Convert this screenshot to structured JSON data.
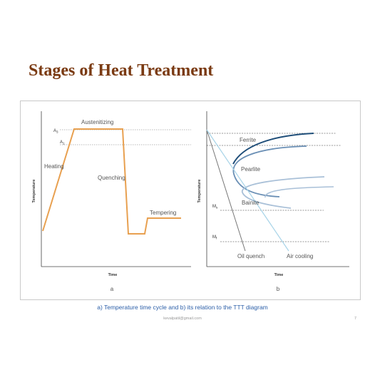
{
  "title": "Stages of Heat Treatment",
  "diagram_a": {
    "y_axis_label": "Temperature",
    "x_axis_label": "Time",
    "panel_label": "a",
    "labels": {
      "austenitizing": "Austenitizing",
      "heating": "Heating",
      "quenching": "Quenching",
      "tempering": "Tempering",
      "a3": "A",
      "a3_sub": "3",
      "a1": "A",
      "a1_sub": "1"
    }
  },
  "diagram_b": {
    "y_axis_label": "Temperature",
    "x_axis_label": "Time",
    "panel_label": "b",
    "labels": {
      "ferrite": "Ferrite",
      "pearlite": "Pearlite",
      "bainite": "Bainite",
      "ms": "M",
      "ms_sub": "s",
      "mf": "M",
      "mf_sub": "f",
      "oil_quench": "Oil quench",
      "air_cooling": "Air cooling"
    }
  },
  "caption": "a) Temperature time cycle and  b) its relation to the TTT diagram",
  "footer": {
    "email": "kevalpatil@gmail.com",
    "page": "7"
  },
  "colors": {
    "title": "#7a3a12",
    "process_line": "#e8a050",
    "caption": "#2c5fa8",
    "ttt_dark": "#1f4e79",
    "ttt_mid": "#6a8fb5",
    "ttt_light": "#a9c0d8",
    "air_cooling_line": "#a8d4e8"
  }
}
